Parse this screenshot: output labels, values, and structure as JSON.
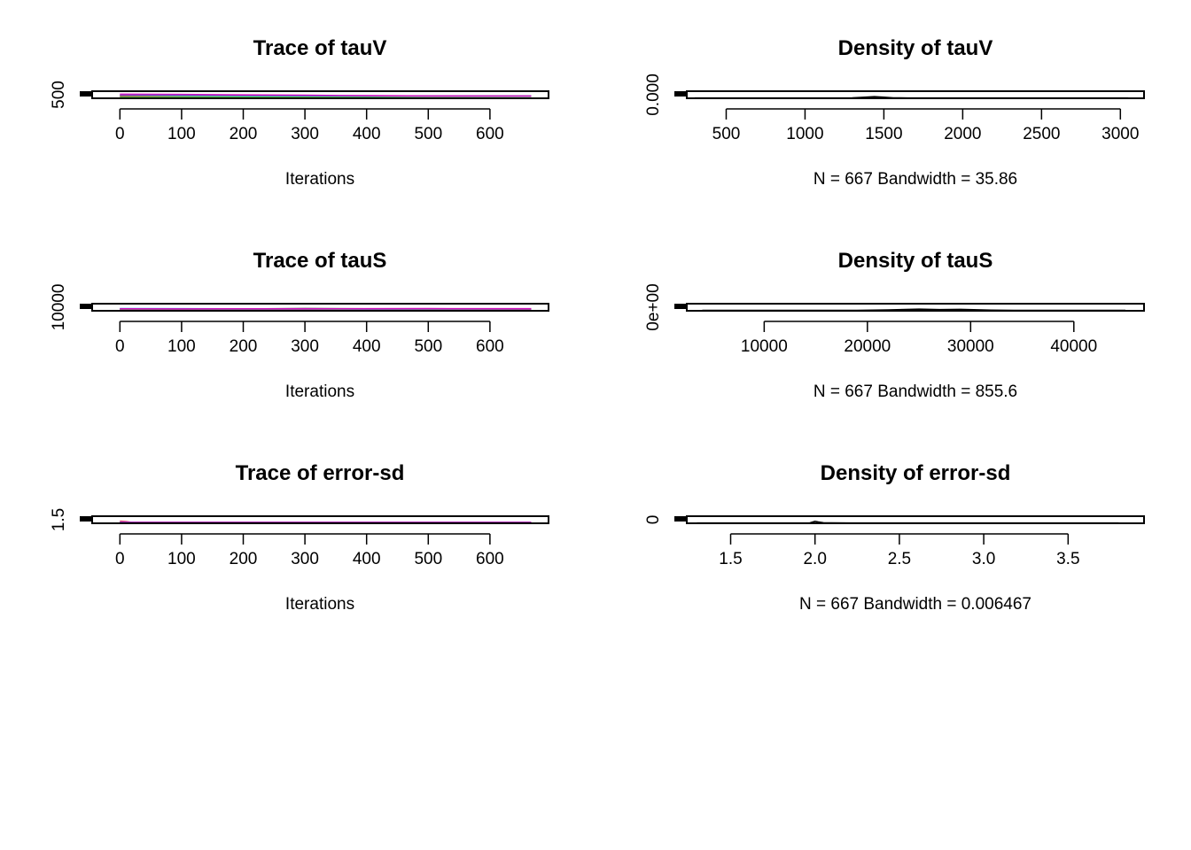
{
  "chart_data": [
    {
      "type": "line",
      "title": "Trace of tauV",
      "xlabel": "Iterations",
      "x_ticks": [
        "0",
        "100",
        "200",
        "300",
        "400",
        "500",
        "600"
      ],
      "x_tick_values": [
        0,
        100,
        200,
        300,
        400,
        500,
        600
      ],
      "xlim": [
        -45,
        695
      ],
      "y_ticks": [
        "500"
      ],
      "y_tick_values": [
        500
      ],
      "ylim": [
        -200,
        5000
      ],
      "series": [
        {
          "color": "#000000",
          "x": [
            0,
            100,
            200,
            300,
            400,
            500,
            667
          ],
          "y": [
            1500,
            1450,
            1400,
            1420,
            1380,
            1400,
            1410
          ]
        },
        {
          "color": "#DF536B",
          "x": [
            0,
            100,
            200,
            300,
            400,
            500,
            667
          ],
          "y": [
            1800,
            1700,
            1650,
            1500,
            1450,
            1400,
            1380
          ]
        },
        {
          "color": "#61D04F",
          "x": [
            0,
            100,
            200,
            300,
            400,
            500,
            667
          ],
          "y": [
            600,
            700,
            800,
            900,
            1000,
            1100,
            1200
          ]
        },
        {
          "color": "#2297E6",
          "x": [
            0,
            100,
            200,
            300,
            400,
            500,
            667
          ],
          "y": [
            2400,
            2000,
            1800,
            1600,
            1500,
            1450,
            1400
          ]
        },
        {
          "color": "#CD0BBC",
          "x": [
            0,
            100,
            200,
            300,
            400,
            500,
            667
          ],
          "y": [
            2800,
            2600,
            2300,
            2000,
            1700,
            1500,
            1450
          ]
        }
      ]
    },
    {
      "type": "line",
      "title": "Density of tauV",
      "xlabel": "N = 667   Bandwidth = 35.86",
      "x_ticks": [
        "500",
        "1000",
        "1500",
        "2000",
        "2500",
        "3000"
      ],
      "x_tick_values": [
        500,
        1000,
        1500,
        2000,
        2500,
        3000
      ],
      "xlim": [
        250,
        3150
      ],
      "y_ticks": [
        "0.000"
      ],
      "y_tick_values": [
        0
      ],
      "ylim": [
        -0.0001,
        0.0025
      ],
      "series": [
        {
          "color": "#000000",
          "x": [
            300,
            1200,
            1300,
            1380,
            1440,
            1500,
            1560,
            1650,
            1800,
            3050
          ],
          "y": [
            0,
            0,
            3e-05,
            0.0003,
            0.0005,
            0.0003,
            5e-05,
            0,
            0,
            0
          ]
        }
      ]
    },
    {
      "type": "line",
      "title": "Trace of tauS",
      "xlabel": "Iterations",
      "x_ticks": [
        "0",
        "100",
        "200",
        "300",
        "400",
        "500",
        "600"
      ],
      "x_tick_values": [
        0,
        100,
        200,
        300,
        400,
        500,
        600
      ],
      "xlim": [
        -45,
        695
      ],
      "y_ticks": [
        "10000"
      ],
      "y_tick_values": [
        10000
      ],
      "ylim": [
        0,
        100000
      ],
      "series": [
        {
          "color": "#000000",
          "x": [
            0,
            100,
            200,
            300,
            400,
            500,
            667
          ],
          "y": [
            25000,
            24000,
            26000,
            30000,
            28000,
            27000,
            26000
          ]
        },
        {
          "color": "#DF536B",
          "x": [
            0,
            100,
            200,
            300,
            400,
            500,
            667
          ],
          "y": [
            22000,
            24000,
            25000,
            26000,
            25000,
            24000,
            25000
          ]
        },
        {
          "color": "#61D04F",
          "x": [
            0,
            100,
            200,
            300,
            400,
            500,
            667
          ],
          "y": [
            18000,
            20000,
            22000,
            24000,
            25000,
            26000,
            27000
          ]
        },
        {
          "color": "#2297E6",
          "x": [
            0,
            100,
            200,
            300,
            400,
            500,
            667
          ],
          "y": [
            30000,
            29000,
            28000,
            27000,
            26000,
            27000,
            28000
          ]
        },
        {
          "color": "#CD0BBC",
          "x": [
            0,
            100,
            200,
            300,
            400,
            500,
            667
          ],
          "y": [
            27000,
            26000,
            27000,
            28000,
            29000,
            30000,
            29000
          ]
        }
      ]
    },
    {
      "type": "line",
      "title": "Density of tauS",
      "xlabel": "N = 667   Bandwidth = 855.6",
      "x_ticks": [
        "10000",
        "20000",
        "30000",
        "40000"
      ],
      "x_tick_values": [
        10000,
        20000,
        30000,
        40000
      ],
      "xlim": [
        2500,
        46800
      ],
      "y_ticks": [
        "0e+00"
      ],
      "y_tick_values": [
        0
      ],
      "ylim": [
        -5e-06,
        0.0001
      ],
      "series": [
        {
          "color": "#000000",
          "x": [
            4000,
            13000,
            15000,
            19000,
            22000,
            25000,
            27000,
            29000,
            32000,
            35000,
            45000
          ],
          "y": [
            0,
            0,
            1e-06,
            0,
            8e-06,
            1.8e-05,
            1.2e-05,
            1.6e-05,
            4e-06,
            0,
            0
          ]
        }
      ]
    },
    {
      "type": "line",
      "title": "Trace of error-sd",
      "xlabel": "Iterations",
      "x_ticks": [
        "0",
        "100",
        "200",
        "300",
        "400",
        "500",
        "600"
      ],
      "x_tick_values": [
        0,
        100,
        200,
        300,
        400,
        500,
        600
      ],
      "xlim": [
        -45,
        695
      ],
      "y_ticks": [
        "1.5"
      ],
      "y_tick_values": [
        1.5
      ],
      "ylim": [
        1.0,
        10.0
      ],
      "series": [
        {
          "color": "#000000",
          "x": [
            0,
            100,
            200,
            300,
            400,
            500,
            667
          ],
          "y": [
            2.0,
            2.0,
            2.0,
            2.0,
            2.0,
            2.0,
            2.0
          ]
        },
        {
          "color": "#DF536B",
          "x": [
            0,
            10,
            20,
            100,
            300,
            500,
            667
          ],
          "y": [
            3.8,
            3.2,
            2.1,
            2.0,
            2.0,
            2.0,
            2.0
          ]
        },
        {
          "color": "#61D04F",
          "x": [
            0,
            100,
            200,
            300,
            400,
            500,
            667
          ],
          "y": [
            2.05,
            2.0,
            2.02,
            2.0,
            2.01,
            2.0,
            2.0
          ]
        },
        {
          "color": "#2297E6",
          "x": [
            0,
            30,
            60,
            100,
            300,
            500,
            667
          ],
          "y": [
            2.4,
            2.1,
            2.0,
            2.0,
            2.0,
            2.0,
            2.0
          ]
        },
        {
          "color": "#CD0BBC",
          "x": [
            0,
            100,
            200,
            300,
            400,
            500,
            667
          ],
          "y": [
            2.0,
            2.01,
            2.0,
            2.0,
            2.01,
            2.0,
            2.0
          ]
        }
      ]
    },
    {
      "type": "line",
      "title": "Density of error-sd",
      "xlabel": "N = 667   Bandwidth = 0.006467",
      "x_ticks": [
        "1.5",
        "2.0",
        "2.5",
        "3.0",
        "3.5"
      ],
      "x_tick_values": [
        1.5,
        2.0,
        2.5,
        3.0,
        3.5
      ],
      "xlim": [
        1.24,
        3.95
      ],
      "y_ticks": [
        "0"
      ],
      "y_tick_values": [
        0
      ],
      "ylim": [
        -1,
        25
      ],
      "series": [
        {
          "color": "#000000",
          "x": [
            1.3,
            1.9,
            1.97,
            2.0,
            2.02,
            2.05,
            2.1,
            2.2,
            2.4,
            3.0,
            3.8
          ],
          "y": [
            0,
            0,
            0.5,
            6,
            4,
            0.8,
            0.2,
            0.1,
            0,
            0,
            0
          ]
        }
      ]
    }
  ]
}
